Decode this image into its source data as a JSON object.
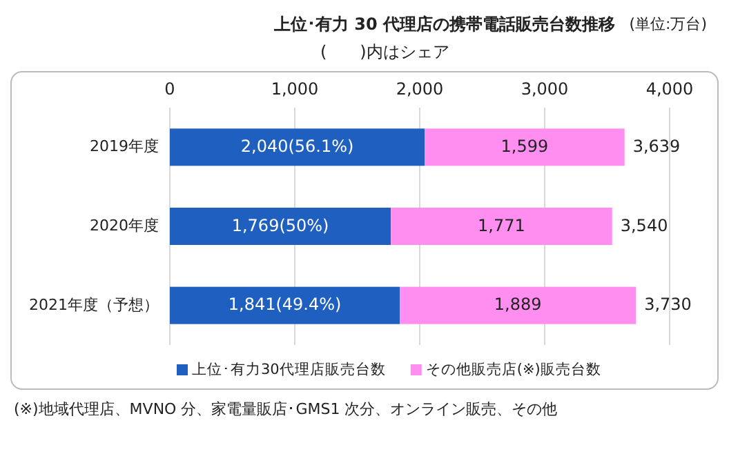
{
  "chart_data": {
    "type": "bar",
    "orientation": "horizontal",
    "stacked": true,
    "title": "上位･有力 30 代理店の携帯電話販売台数推移",
    "subtitle": "(　　)内はシェア",
    "annotations": [
      "(単位:万台)",
      "(※)地域代理店、MVNO 分、家電量販店･GMS1 次分、オンライン販売、その他"
    ],
    "categories": [
      "2019年度",
      "2020年度",
      "2021年度（予想）"
    ],
    "series": [
      {
        "name": "上位･有力30代理店販売台数",
        "color": "#1f5fc0",
        "values": [
          2040,
          1769,
          1841
        ],
        "value_labels": [
          "2,040(56.1%)",
          "1,769(50%)",
          "1,841(49.4%)"
        ]
      },
      {
        "name": "その他販売店(※)販売台数",
        "color": "#ff8ef0",
        "values": [
          1599,
          1771,
          1889
        ],
        "value_labels": [
          "1,599",
          "1,771",
          "1,889"
        ]
      }
    ],
    "totals": [
      "3,639",
      "3,540",
      "3,730"
    ],
    "xlim": [
      0,
      4000
    ],
    "xticks": [
      {
        "value": 0,
        "label": "0"
      },
      {
        "value": 1000,
        "label": "1,000"
      },
      {
        "value": 2000,
        "label": "2,000"
      },
      {
        "value": 3000,
        "label": "3,000"
      },
      {
        "value": 4000,
        "label": "4,000"
      }
    ],
    "grid": "x",
    "legend": "bottom"
  }
}
